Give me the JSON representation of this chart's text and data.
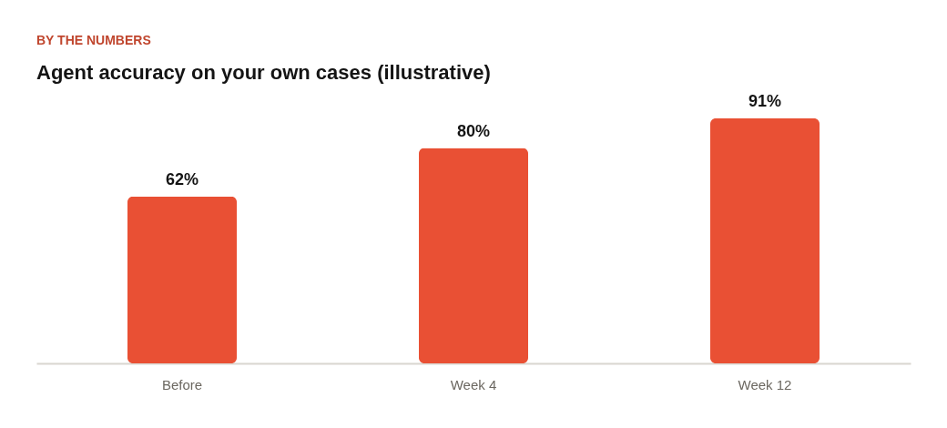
{
  "chart_data": {
    "type": "bar",
    "subtitle": "BY THE NUMBERS",
    "title": "Agent accuracy on your own cases (illustrative)",
    "categories": [
      "Before",
      "Week 4",
      "Week 12"
    ],
    "values": [
      62,
      80,
      91
    ],
    "color": "#e95034",
    "value_labels": [
      "62%",
      "80%",
      "91%"
    ],
    "tick_labels": "x"
  }
}
